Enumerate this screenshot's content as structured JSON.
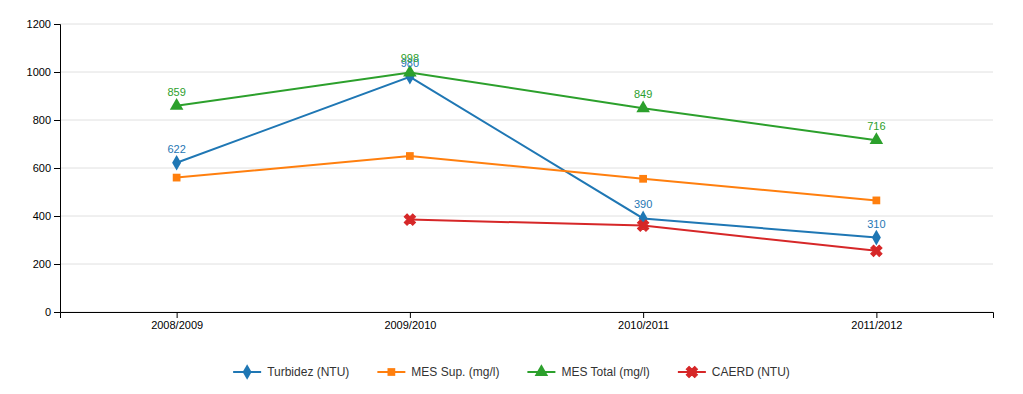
{
  "chart_data": {
    "type": "line",
    "categories": [
      "2008/2009",
      "2009/2010",
      "2010/2011",
      "2011/2012"
    ],
    "series": [
      {
        "name": "Turbidez (NTU)",
        "values": [
          622,
          980,
          390,
          310
        ],
        "marker": "diamond",
        "data_labels": true
      },
      {
        "name": "MES Sup. (mg/l)",
        "values": [
          560,
          650,
          555,
          465
        ],
        "marker": "square"
      },
      {
        "name": "MES Total (mg/l)",
        "values": [
          859,
          998,
          849,
          716
        ],
        "marker": "triangle",
        "data_labels": true
      },
      {
        "name": "CAERD (NTU)",
        "values": [
          null,
          385,
          360,
          255
        ],
        "marker": "x"
      }
    ],
    "ylim": [
      0,
      1200
    ],
    "yticks": [
      0,
      200,
      400,
      600,
      800,
      1000,
      1200
    ],
    "grid": true,
    "legend": "bottom"
  }
}
